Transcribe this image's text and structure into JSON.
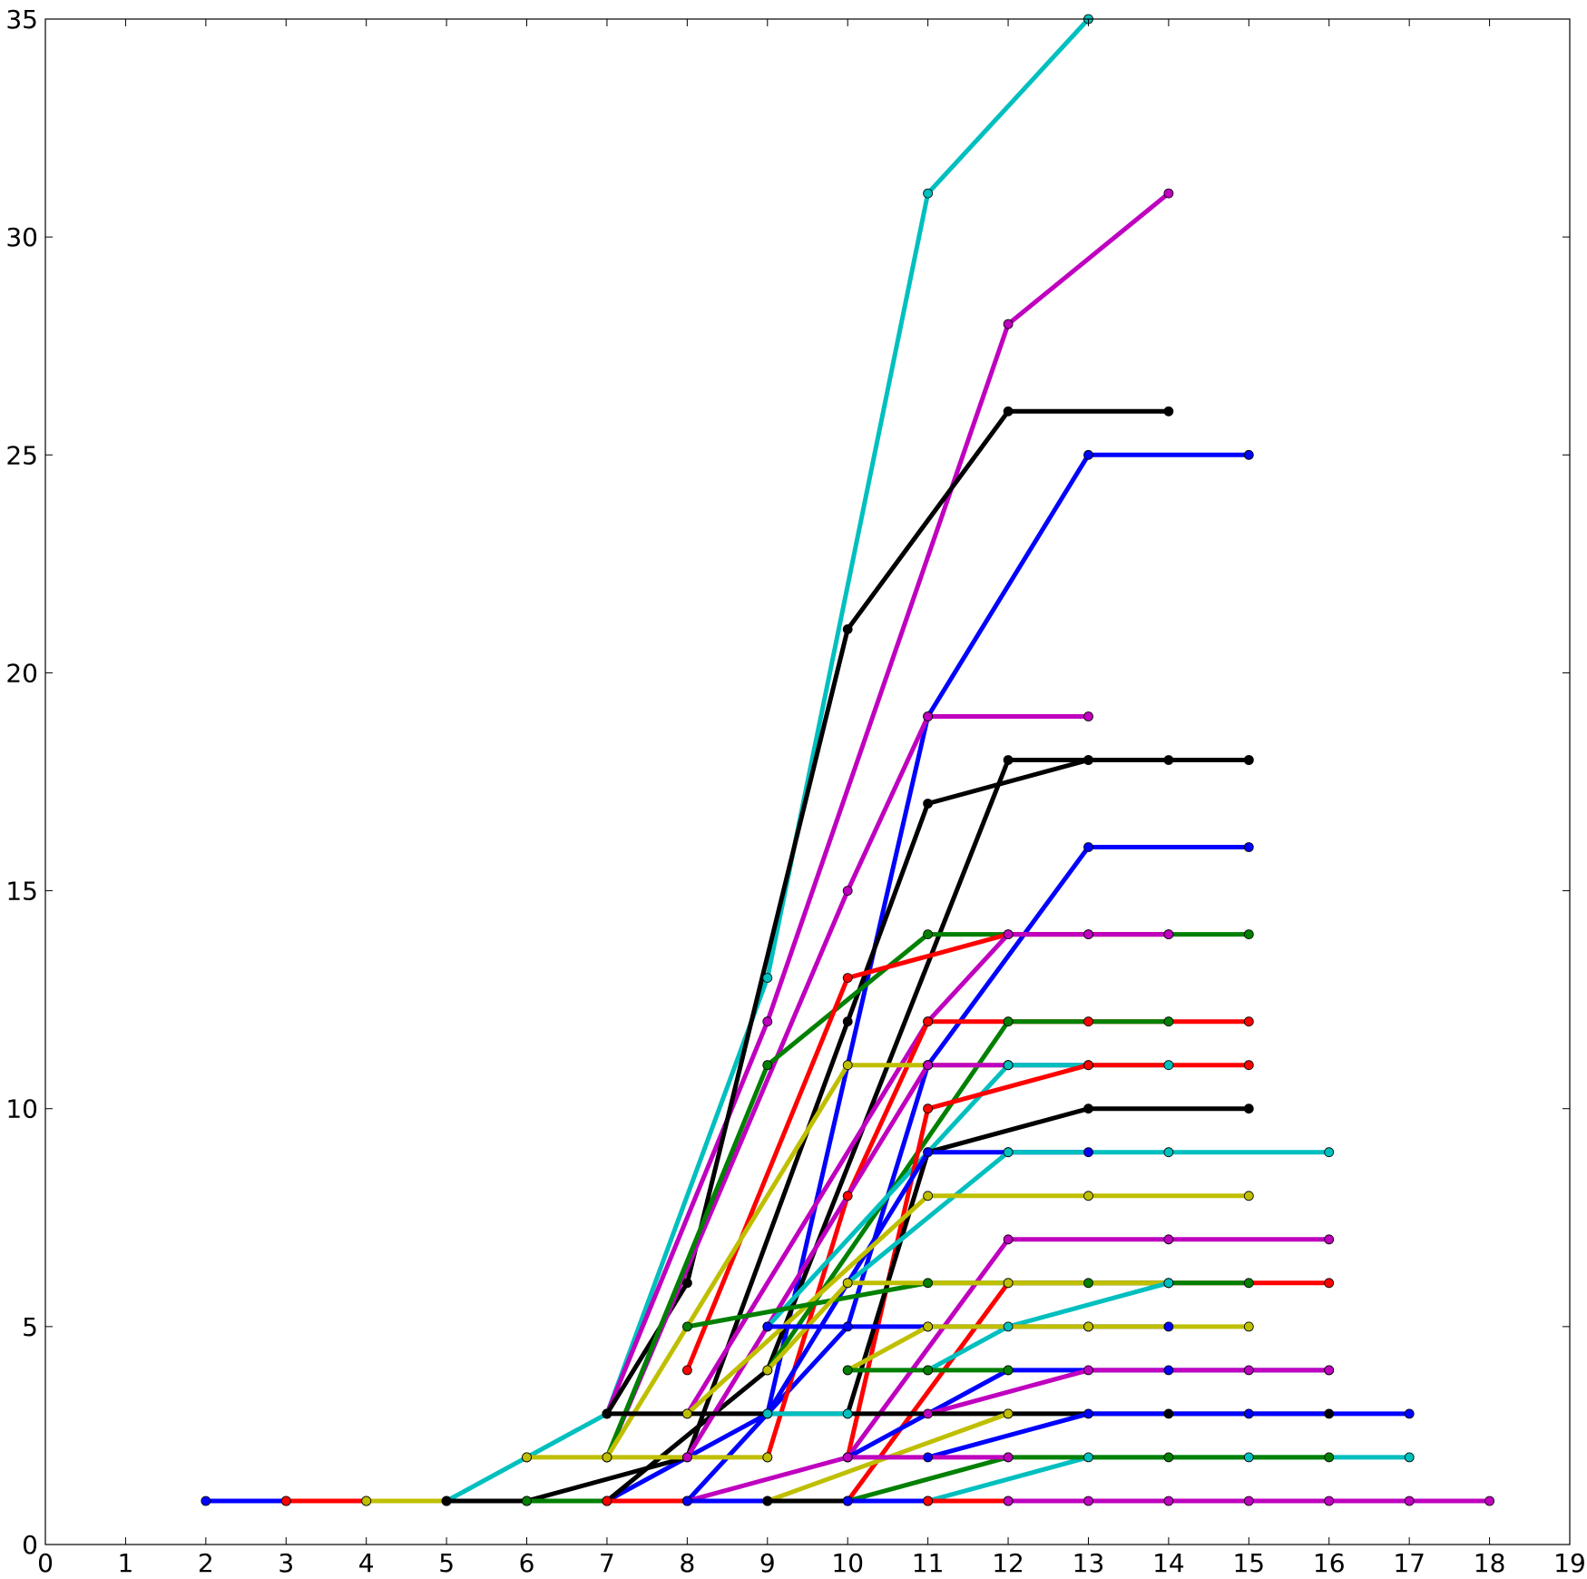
{
  "chart_data": {
    "type": "line",
    "title": "",
    "xlabel": "",
    "ylabel": "",
    "xlim": [
      0,
      19
    ],
    "ylim": [
      0,
      35
    ],
    "xticks": [
      "0",
      "1",
      "2",
      "3",
      "4",
      "5",
      "6",
      "7",
      "8",
      "9",
      "10",
      "11",
      "12",
      "13",
      "14",
      "15",
      "16",
      "17",
      "18",
      "19"
    ],
    "yticks": [
      "0",
      "5",
      "10",
      "15",
      "20",
      "25",
      "30",
      "35"
    ],
    "grid": false,
    "legend": "none",
    "series": [
      {
        "color": "#00bfbf",
        "x": [
          5,
          6,
          7,
          9,
          11,
          13
        ],
        "y": [
          1,
          2,
          3,
          13,
          31,
          35
        ]
      },
      {
        "color": "#bf00bf",
        "x": [
          7,
          9,
          12,
          14
        ],
        "y": [
          3,
          12,
          28,
          31
        ]
      },
      {
        "color": "#000000",
        "x": [
          7,
          8,
          10,
          12,
          14
        ],
        "y": [
          3,
          6,
          21,
          26,
          26
        ]
      },
      {
        "color": "#0000ff",
        "x": [
          7,
          9,
          11,
          13,
          15
        ],
        "y": [
          1,
          3,
          19,
          25,
          25
        ]
      },
      {
        "color": "#bf00bf",
        "x": [
          7,
          10,
          11,
          13
        ],
        "y": [
          2,
          15,
          19,
          19
        ]
      },
      {
        "color": "#000000",
        "x": [
          6,
          8,
          10,
          11,
          13,
          15
        ],
        "y": [
          1,
          2,
          12,
          17,
          18,
          18
        ]
      },
      {
        "color": "#000000",
        "x": [
          7,
          9,
          12,
          13,
          14,
          15
        ],
        "y": [
          1,
          4,
          18,
          18,
          18,
          18
        ]
      },
      {
        "color": "#0000ff",
        "x": [
          8,
          10,
          11,
          13,
          15
        ],
        "y": [
          1,
          5,
          11,
          16,
          16
        ]
      },
      {
        "color": "#008000",
        "x": [
          7,
          9,
          11,
          13,
          15
        ],
        "y": [
          2,
          11,
          14,
          14,
          14
        ]
      },
      {
        "color": "#ff0000",
        "x": [
          8,
          10,
          12,
          14
        ],
        "y": [
          4,
          13,
          14,
          14
        ]
      },
      {
        "color": "#bf00bf",
        "x": [
          8,
          11,
          12,
          13,
          14
        ],
        "y": [
          3,
          12,
          14,
          14,
          14
        ]
      },
      {
        "color": "#ff0000",
        "x": [
          9,
          10,
          11,
          13,
          15
        ],
        "y": [
          2,
          8,
          12,
          12,
          12
        ]
      },
      {
        "color": "#008000",
        "x": [
          9,
          12,
          14
        ],
        "y": [
          4,
          12,
          12
        ]
      },
      {
        "color": "#bfbf00",
        "x": [
          7,
          10,
          11,
          12
        ],
        "y": [
          2,
          11,
          11,
          11
        ]
      },
      {
        "color": "#bf00bf",
        "x": [
          8,
          11,
          12,
          13
        ],
        "y": [
          2,
          11,
          11,
          11
        ]
      },
      {
        "color": "#00bfbf",
        "x": [
          9,
          12,
          14
        ],
        "y": [
          5,
          11,
          11
        ]
      },
      {
        "color": "#ff0000",
        "x": [
          10,
          11,
          13,
          15
        ],
        "y": [
          2,
          10,
          11,
          11
        ]
      },
      {
        "color": "#000000",
        "x": [
          10,
          11,
          13,
          15
        ],
        "y": [
          3,
          9,
          10,
          10
        ]
      },
      {
        "color": "#0000ff",
        "x": [
          9,
          11,
          12,
          13
        ],
        "y": [
          3,
          9,
          9,
          9
        ]
      },
      {
        "color": "#00bfbf",
        "x": [
          10,
          12,
          14,
          16
        ],
        "y": [
          6,
          9,
          9,
          9
        ]
      },
      {
        "color": "#bfbf00",
        "x": [
          8,
          11,
          13,
          15
        ],
        "y": [
          3,
          8,
          8,
          8
        ]
      },
      {
        "color": "#bf00bf",
        "x": [
          10,
          12,
          14,
          16
        ],
        "y": [
          2,
          7,
          7,
          7
        ]
      },
      {
        "color": "#ff0000",
        "x": [
          10,
          12,
          14,
          16
        ],
        "y": [
          1,
          6,
          6,
          6
        ]
      },
      {
        "color": "#008000",
        "x": [
          8,
          11,
          13,
          15
        ],
        "y": [
          5,
          6,
          6,
          6
        ]
      },
      {
        "color": "#bfbf00",
        "x": [
          9,
          10,
          12,
          14
        ],
        "y": [
          4,
          6,
          6,
          6
        ]
      },
      {
        "color": "#00bfbf",
        "x": [
          11,
          12,
          14
        ],
        "y": [
          4,
          5,
          6
        ]
      },
      {
        "color": "#0000ff",
        "x": [
          9,
          11,
          13,
          14
        ],
        "y": [
          5,
          5,
          5,
          5
        ]
      },
      {
        "color": "#bfbf00",
        "x": [
          10,
          11,
          13,
          15
        ],
        "y": [
          4,
          5,
          5,
          5
        ]
      },
      {
        "color": "#0000ff",
        "x": [
          10,
          12,
          14,
          16
        ],
        "y": [
          2,
          4,
          4,
          4
        ]
      },
      {
        "color": "#bf00bf",
        "x": [
          11,
          13,
          15,
          16
        ],
        "y": [
          3,
          4,
          4,
          4
        ]
      },
      {
        "color": "#008000",
        "x": [
          10,
          11,
          12
        ],
        "y": [
          4,
          4,
          4
        ]
      },
      {
        "color": "#000000",
        "x": [
          7,
          9,
          12,
          14,
          16
        ],
        "y": [
          3,
          3,
          3,
          3,
          3
        ]
      },
      {
        "color": "#0000ff",
        "x": [
          11,
          13,
          15,
          17
        ],
        "y": [
          2,
          3,
          3,
          3
        ]
      },
      {
        "color": "#00bfbf",
        "x": [
          9,
          10
        ],
        "y": [
          3,
          3
        ]
      },
      {
        "color": "#bfbf00",
        "x": [
          9,
          12
        ],
        "y": [
          1,
          3
        ]
      },
      {
        "color": "#00bfbf",
        "x": [
          11,
          13,
          15,
          17
        ],
        "y": [
          1,
          2,
          2,
          2
        ]
      },
      {
        "color": "#008000",
        "x": [
          10,
          12,
          14,
          16
        ],
        "y": [
          1,
          2,
          2,
          2
        ]
      },
      {
        "color": "#bfbf00",
        "x": [
          6,
          7,
          9
        ],
        "y": [
          2,
          2,
          2
        ]
      },
      {
        "color": "#bf00bf",
        "x": [
          8,
          10,
          12
        ],
        "y": [
          1,
          2,
          2
        ]
      },
      {
        "color": "#0000ff",
        "x": [
          2,
          3
        ],
        "y": [
          1,
          1
        ]
      },
      {
        "color": "#ff0000",
        "x": [
          3,
          4
        ],
        "y": [
          1,
          1
        ]
      },
      {
        "color": "#bfbf00",
        "x": [
          4,
          5
        ],
        "y": [
          1,
          1
        ]
      },
      {
        "color": "#000000",
        "x": [
          5,
          6
        ],
        "y": [
          1,
          1
        ]
      },
      {
        "color": "#008000",
        "x": [
          6,
          7
        ],
        "y": [
          1,
          1
        ]
      },
      {
        "color": "#ff0000",
        "x": [
          7,
          8
        ],
        "y": [
          1,
          1
        ]
      },
      {
        "color": "#0000ff",
        "x": [
          8,
          9
        ],
        "y": [
          1,
          1
        ]
      },
      {
        "color": "#000000",
        "x": [
          9,
          10
        ],
        "y": [
          1,
          1
        ]
      },
      {
        "color": "#0000ff",
        "x": [
          10,
          11
        ],
        "y": [
          1,
          1
        ]
      },
      {
        "color": "#ff0000",
        "x": [
          11,
          12
        ],
        "y": [
          1,
          1
        ]
      },
      {
        "color": "#bf00bf",
        "x": [
          12,
          13,
          14,
          15,
          16,
          17,
          18
        ],
        "y": [
          1,
          1,
          1,
          1,
          1,
          1,
          1
        ]
      }
    ]
  }
}
